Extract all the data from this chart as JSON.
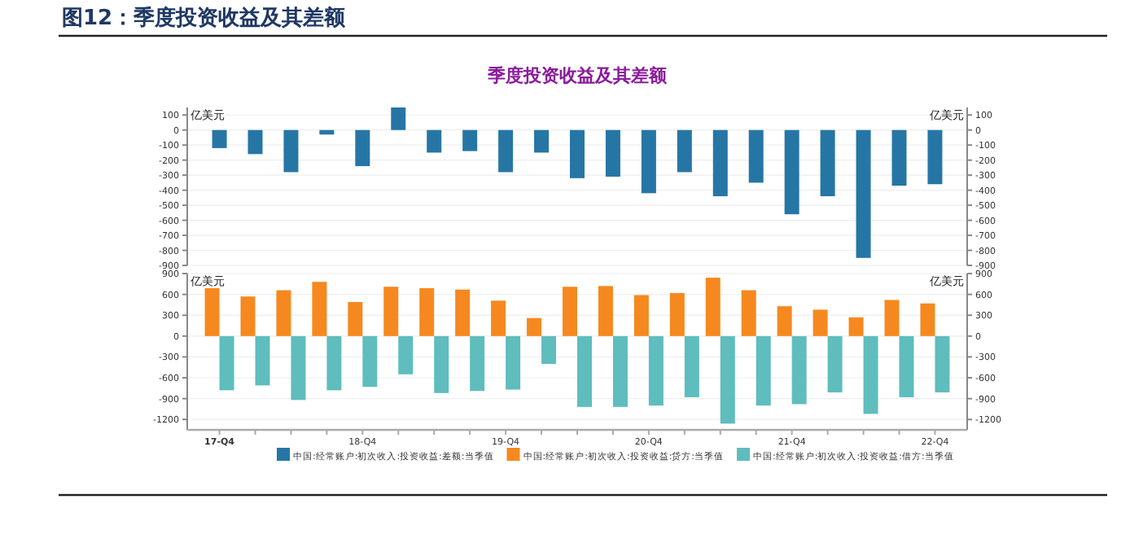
{
  "chart_data": [
    {
      "type": "bar",
      "title": "季度投资收益及其差额",
      "annotations": [
        "图12：季度投资收益及其差额"
      ],
      "ylabel": "亿美元",
      "y2label": "亿美元",
      "categories": [
        null,
        null,
        null,
        null,
        null,
        null,
        null,
        null,
        null,
        null,
        null,
        null,
        null,
        null,
        null,
        null,
        null,
        null,
        null,
        null,
        null
      ],
      "series": [
        {
          "name": "中国:经常账户:初次收入:投资收益:差额:当季值",
          "color": "#2676a5",
          "values": [
            -120,
            -160,
            -280,
            -30,
            -240,
            150,
            -150,
            -140,
            -280,
            -150,
            -320,
            -310,
            -420,
            -280,
            -440,
            -350,
            -560,
            -440,
            -850,
            -370,
            -360
          ]
        }
      ],
      "ylim": [
        -900,
        150
      ],
      "yticks": [
        -900,
        -800,
        -700,
        -600,
        -500,
        -400,
        -300,
        -200,
        -100,
        0,
        100
      ],
      "y2lim": [
        -900,
        150
      ],
      "y2ticks": [
        -900,
        -800,
        -700,
        -600,
        -500,
        -400,
        -300,
        -200,
        -100,
        0,
        100
      ],
      "grid": "y",
      "legend": "bottom",
      "tick_labels": "y"
    },
    {
      "type": "bar",
      "ylabel": "亿美元",
      "y2label": "亿美元",
      "categories": [
        "17-Q4",
        null,
        null,
        null,
        "18-Q4",
        null,
        null,
        null,
        "19-Q4",
        null,
        null,
        null,
        "20-Q4",
        null,
        null,
        null,
        "21-Q4",
        null,
        null,
        null,
        "22-Q4"
      ],
      "series": [
        {
          "name": "中国:经常账户:初次收入:投资收益:贷方:当季值",
          "color": "#f5891f",
          "values": [
            690,
            570,
            660,
            780,
            490,
            710,
            690,
            670,
            510,
            260,
            710,
            720,
            590,
            620,
            840,
            660,
            430,
            380,
            270,
            520,
            470
          ]
        },
        {
          "name": "中国:经常账户:初次收入:投资收益:借方:当季值",
          "color": "#5fbdbd",
          "values": [
            -780,
            -710,
            -920,
            -780,
            -730,
            -550,
            -820,
            -790,
            -770,
            -400,
            -1020,
            -1020,
            -1000,
            -880,
            -1260,
            -1000,
            -980,
            -810,
            -1120,
            -880,
            -810
          ]
        }
      ],
      "ylim": [
        -1350,
        900
      ],
      "yticks": [
        -1200,
        -900,
        -600,
        -300,
        0,
        300,
        600,
        900
      ],
      "y2lim": [
        -1350,
        900
      ],
      "y2ticks": [
        -1200,
        -900,
        -600,
        -300,
        0,
        300,
        600,
        900
      ],
      "grid": "y",
      "legend": "bottom"
    }
  ]
}
